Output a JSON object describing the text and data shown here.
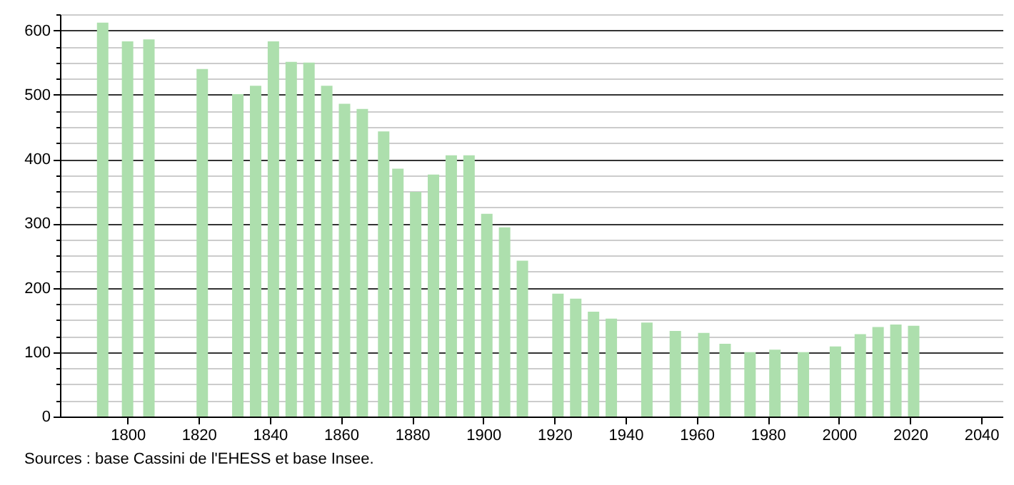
{
  "chart_data": {
    "type": "bar",
    "x": [
      1793,
      1800,
      1806,
      1821,
      1831,
      1836,
      1841,
      1846,
      1851,
      1856,
      1861,
      1866,
      1872,
      1876,
      1881,
      1886,
      1891,
      1896,
      1901,
      1906,
      1911,
      1921,
      1926,
      1931,
      1936,
      1946,
      1954,
      1962,
      1968,
      1975,
      1982,
      1990,
      1999,
      2006,
      2011,
      2016,
      2021
    ],
    "values": [
      612,
      583,
      586,
      540,
      501,
      514,
      583,
      551,
      550,
      514,
      486,
      478,
      443,
      385,
      349,
      376,
      406,
      406,
      315,
      294,
      242,
      191,
      183,
      163,
      152,
      146,
      133,
      130,
      113,
      100,
      104,
      100,
      109,
      128,
      139,
      143,
      141
    ],
    "color": "#addfad",
    "xlim": [
      1781,
      2046
    ],
    "xticks": [
      1800,
      1820,
      1840,
      1860,
      1880,
      1900,
      1920,
      1940,
      1960,
      1980,
      2000,
      2020,
      2040
    ],
    "ylim": [
      0,
      625
    ],
    "yticks": [
      0,
      {
        "value": 25,
        "label": null
      },
      {
        "value": 50,
        "label": null
      },
      {
        "value": 75,
        "label": null
      },
      100,
      {
        "value": 125,
        "label": null
      },
      {
        "value": 150,
        "label": null
      },
      {
        "value": 175,
        "label": null
      },
      200,
      {
        "value": 225,
        "label": null
      },
      {
        "value": 250,
        "label": null
      },
      {
        "value": 275,
        "label": null
      },
      300,
      {
        "value": 325,
        "label": null
      },
      {
        "value": 350,
        "label": null
      },
      {
        "value": 375,
        "label": null
      },
      400,
      {
        "value": 425,
        "label": null
      },
      {
        "value": 450,
        "label": null
      },
      {
        "value": 475,
        "label": null
      },
      500,
      {
        "value": 525,
        "label": null
      },
      {
        "value": 550,
        "label": null
      },
      {
        "value": 575,
        "label": null
      },
      600,
      {
        "value": 625,
        "label": null
      }
    ],
    "grid": "y",
    "annotations": [
      "Sources : base Cassini de l'EHESS et base Insee."
    ]
  }
}
